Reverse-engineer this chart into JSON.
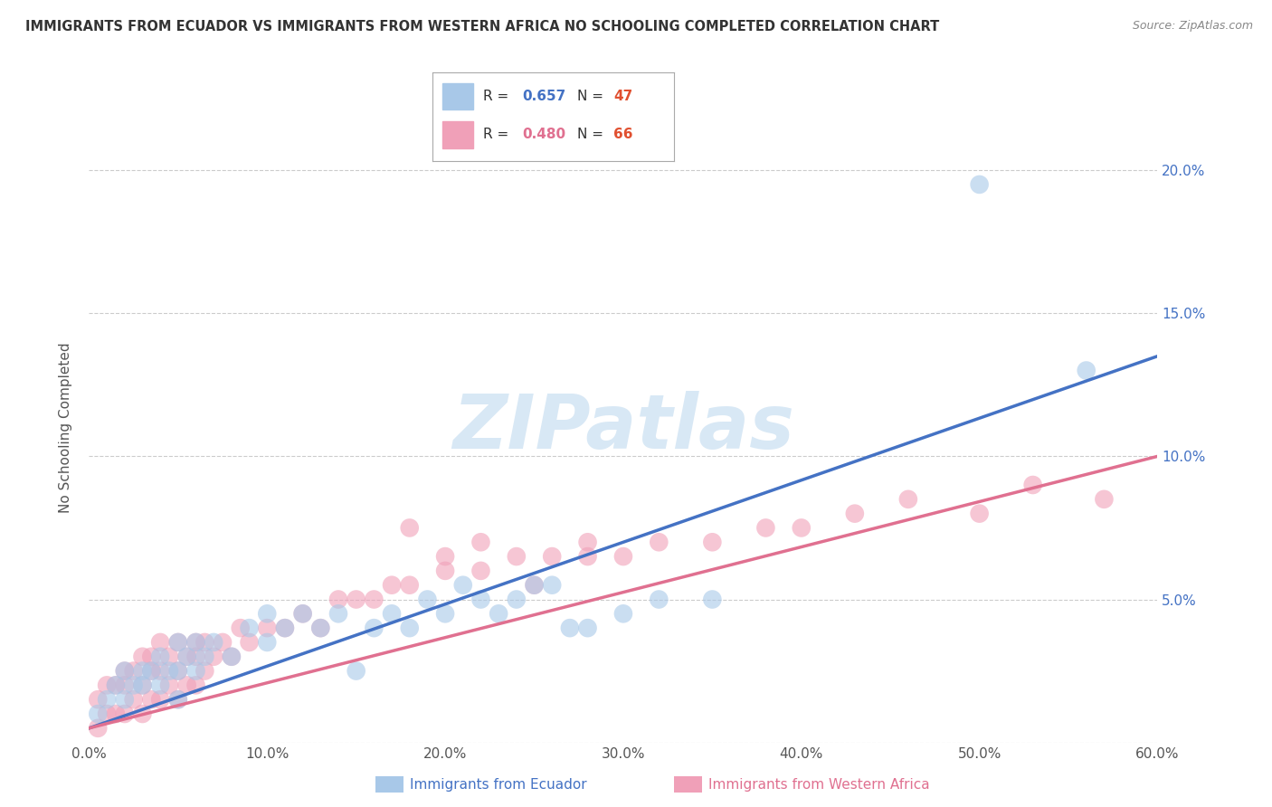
{
  "title": "IMMIGRANTS FROM ECUADOR VS IMMIGRANTS FROM WESTERN AFRICA NO SCHOOLING COMPLETED CORRELATION CHART",
  "source": "Source: ZipAtlas.com",
  "xlabel_bottom": [
    "Immigrants from Ecuador",
    "Immigrants from Western Africa"
  ],
  "ylabel": "No Schooling Completed",
  "xlim": [
    0.0,
    0.6
  ],
  "ylim": [
    0.0,
    0.22
  ],
  "xticks": [
    0.0,
    0.1,
    0.2,
    0.3,
    0.4,
    0.5,
    0.6
  ],
  "yticks": [
    0.0,
    0.05,
    0.1,
    0.15,
    0.2
  ],
  "xtick_labels": [
    "0.0%",
    "10.0%",
    "20.0%",
    "30.0%",
    "40.0%",
    "50.0%",
    "60.0%"
  ],
  "ytick_labels": [
    "",
    "5.0%",
    "10.0%",
    "15.0%",
    "20.0%"
  ],
  "ecuador_color": "#A8C8E8",
  "western_africa_color": "#F0A0B8",
  "ecuador_line_color": "#4472C4",
  "western_africa_line_color": "#E07090",
  "R_ecuador": 0.657,
  "N_ecuador": 47,
  "R_western_africa": 0.48,
  "N_western_africa": 66,
  "legend_R_ecuador_color": "#4472C4",
  "legend_R_wa_color": "#E07090",
  "legend_N_color": "#E05030",
  "watermark": "ZIPatlas",
  "ecuador_scatter_x": [
    0.005,
    0.01,
    0.015,
    0.02,
    0.02,
    0.025,
    0.03,
    0.03,
    0.035,
    0.04,
    0.04,
    0.045,
    0.05,
    0.05,
    0.05,
    0.055,
    0.06,
    0.06,
    0.065,
    0.07,
    0.08,
    0.09,
    0.1,
    0.1,
    0.11,
    0.12,
    0.13,
    0.14,
    0.15,
    0.16,
    0.17,
    0.18,
    0.19,
    0.2,
    0.21,
    0.22,
    0.23,
    0.24,
    0.25,
    0.26,
    0.27,
    0.28,
    0.3,
    0.32,
    0.35,
    0.5,
    0.56
  ],
  "ecuador_scatter_y": [
    0.01,
    0.015,
    0.02,
    0.015,
    0.025,
    0.02,
    0.02,
    0.025,
    0.025,
    0.02,
    0.03,
    0.025,
    0.015,
    0.025,
    0.035,
    0.03,
    0.025,
    0.035,
    0.03,
    0.035,
    0.03,
    0.04,
    0.035,
    0.045,
    0.04,
    0.045,
    0.04,
    0.045,
    0.025,
    0.04,
    0.045,
    0.04,
    0.05,
    0.045,
    0.055,
    0.05,
    0.045,
    0.05,
    0.055,
    0.055,
    0.04,
    0.04,
    0.045,
    0.05,
    0.05,
    0.195,
    0.13
  ],
  "western_africa_scatter_x": [
    0.005,
    0.005,
    0.01,
    0.01,
    0.015,
    0.015,
    0.02,
    0.02,
    0.02,
    0.025,
    0.025,
    0.03,
    0.03,
    0.03,
    0.035,
    0.035,
    0.035,
    0.04,
    0.04,
    0.04,
    0.045,
    0.045,
    0.05,
    0.05,
    0.05,
    0.055,
    0.055,
    0.06,
    0.06,
    0.06,
    0.065,
    0.065,
    0.07,
    0.075,
    0.08,
    0.085,
    0.09,
    0.1,
    0.11,
    0.12,
    0.13,
    0.14,
    0.15,
    0.16,
    0.17,
    0.18,
    0.2,
    0.22,
    0.24,
    0.26,
    0.28,
    0.3,
    0.32,
    0.35,
    0.38,
    0.4,
    0.43,
    0.46,
    0.5,
    0.53,
    0.57,
    0.18,
    0.2,
    0.22,
    0.25,
    0.28
  ],
  "western_africa_scatter_y": [
    0.005,
    0.015,
    0.01,
    0.02,
    0.01,
    0.02,
    0.01,
    0.02,
    0.025,
    0.015,
    0.025,
    0.01,
    0.02,
    0.03,
    0.015,
    0.025,
    0.03,
    0.015,
    0.025,
    0.035,
    0.02,
    0.03,
    0.015,
    0.025,
    0.035,
    0.02,
    0.03,
    0.02,
    0.03,
    0.035,
    0.025,
    0.035,
    0.03,
    0.035,
    0.03,
    0.04,
    0.035,
    0.04,
    0.04,
    0.045,
    0.04,
    0.05,
    0.05,
    0.05,
    0.055,
    0.055,
    0.06,
    0.06,
    0.065,
    0.065,
    0.07,
    0.065,
    0.07,
    0.07,
    0.075,
    0.075,
    0.08,
    0.085,
    0.08,
    0.09,
    0.085,
    0.075,
    0.065,
    0.07,
    0.055,
    0.065
  ],
  "ecuador_trendline_x": [
    0.0,
    0.6
  ],
  "ecuador_trendline_y": [
    0.005,
    0.135
  ],
  "western_africa_trendline_x": [
    0.0,
    0.6
  ],
  "western_africa_trendline_y": [
    0.005,
    0.1
  ]
}
